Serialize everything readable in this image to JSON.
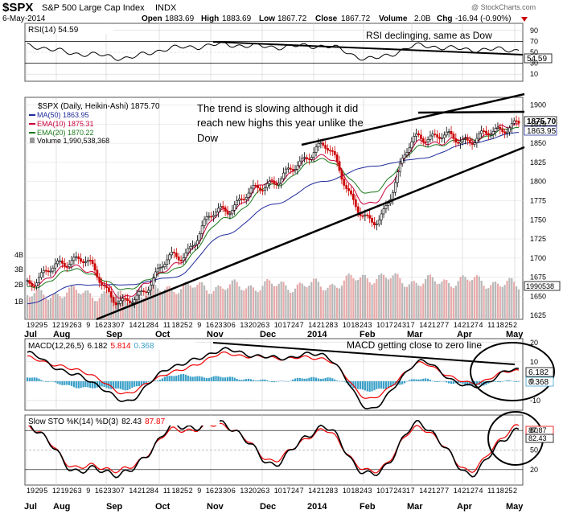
{
  "header": {
    "symbol": "$SPX",
    "name": "S&P 500 Large Cap Index",
    "exchange": "INDX",
    "date": "6-May-2014",
    "open_label": "Open",
    "open": "1883.69",
    "high_label": "High",
    "high": "1883.69",
    "low_label": "Low",
    "low": "1867.72",
    "close_label": "Close",
    "close": "1867.72",
    "volume_label": "Volume",
    "volume": "2.0B",
    "chg_label": "Chg",
    "chg": "-16.94 (-0.90%)",
    "watermark": "@ StockCharts.com"
  },
  "rsi": {
    "legend": "RSI(14) 54.59",
    "annotation": "RSI declinging, same as Dow",
    "value_tag": "54.59",
    "ticks": [
      "90",
      "70",
      "50",
      "30",
      "10"
    ]
  },
  "price": {
    "legend_title": "$SPX (Daily, Heikin-Ashi) 1875.70",
    "legend_ma50": "MA(50) 1863.95",
    "legend_ema10": "EMA(10) 1875.31",
    "legend_ema20": "EMA(20) 1870.22",
    "legend_volume": "Volume 1,990,538,368",
    "annotation_lines": [
      "The trend is slowing although it did",
      "reach new highs this year unlike the",
      "Dow"
    ],
    "tag_close": "1875.70",
    "tag_ma": "1863.95",
    "tag_volume": "1990538",
    "ticks": [
      "1900",
      "1875",
      "1850",
      "1825",
      "1800",
      "1775",
      "1750",
      "1725",
      "1700",
      "1675",
      "1650",
      "1625"
    ],
    "volume_ticks": [
      "4B",
      "3B",
      "2B",
      "1B"
    ]
  },
  "macd": {
    "legend_prefix": "MACD(12,26,5)",
    "legend_macd": "6.182",
    "legend_signal": "5.814",
    "legend_hist": "0.368",
    "annotation": "MACD getting close to zero line",
    "tag_macd": "6.182",
    "tag_hist": "0.368",
    "ticks": [
      "20",
      "10",
      "0",
      "-10"
    ]
  },
  "sto": {
    "legend_prefix": "Slow STO %K(14) %D(3)",
    "legend_k": "82.43",
    "legend_d": "87.87",
    "tag_k": "82.43",
    "tag_d": "87.87",
    "ticks": [
      "80",
      "50",
      "20"
    ]
  },
  "xaxis": {
    "date_labels": [
      "19",
      "29",
      "5",
      "12",
      "19",
      "26",
      "3",
      "9",
      "16",
      "23",
      "30",
      "7",
      "14",
      "21",
      "28",
      "4",
      "11",
      "18",
      "25",
      "2",
      "9",
      "16",
      "23",
      "30",
      "6",
      "13",
      "20",
      "26",
      "3",
      "10",
      "17",
      "24",
      "7",
      "14",
      "21",
      "28",
      "3",
      "10",
      "18",
      "24",
      "3",
      "10",
      "17",
      "24",
      "31",
      "7",
      "14",
      "21",
      "27",
      "7",
      "14",
      "21",
      "27",
      "4",
      "11",
      "18",
      "25",
      "2"
    ],
    "month_labels": [
      "Jul",
      "Aug",
      "Sep",
      "Oct",
      "Nov",
      "Dec",
      "2014",
      "Feb",
      "Mar",
      "Apr",
      "May"
    ]
  },
  "colors": {
    "up_candle": "#000000",
    "down_candle": "#cc0000",
    "ma50": "#1f2a9a",
    "ema10": "#c8003c",
    "ema20": "#1a7a1a",
    "volume_up": "#b8b8b8",
    "volume_down": "#e8aaaa",
    "macd_line": "#000000",
    "signal_line": "#ee0000",
    "histogram": "#3aa0c8",
    "trendline": "#000000"
  },
  "chart_data": [
    {
      "type": "line",
      "panel": "RSI",
      "title": "RSI(14) 54.59",
      "ylim": [
        0,
        100
      ],
      "reference_lines": [
        70,
        30
      ],
      "x": [
        "Jul",
        "Aug",
        "Sep",
        "Oct",
        "Nov",
        "Dec",
        "2014",
        "Feb",
        "Mar",
        "Apr",
        "May"
      ],
      "series": [
        {
          "name": "RSI(14)",
          "values": [
            62,
            48,
            40,
            58,
            64,
            60,
            62,
            38,
            62,
            55,
            54.59
          ]
        }
      ]
    },
    {
      "type": "line",
      "panel": "Price",
      "title": "$SPX (Daily, Heikin-Ashi) 1875.70",
      "ylim": [
        1620,
        1910
      ],
      "x": [
        "Jul",
        "Aug",
        "Sep",
        "Oct",
        "Nov",
        "Dec",
        "2014",
        "Feb",
        "Mar",
        "Apr",
        "May"
      ],
      "series": [
        {
          "name": "$SPX",
          "values": [
            1670,
            1700,
            1640,
            1700,
            1765,
            1800,
            1845,
            1745,
            1860,
            1855,
            1875.7
          ]
        },
        {
          "name": "MA(50)",
          "values": [
            1640,
            1665,
            1665,
            1675,
            1730,
            1770,
            1800,
            1820,
            1830,
            1850,
            1863.95
          ]
        },
        {
          "name": "EMA(10)",
          "values": [
            1665,
            1690,
            1650,
            1690,
            1760,
            1800,
            1835,
            1770,
            1850,
            1855,
            1875.31
          ]
        },
        {
          "name": "EMA(20)",
          "values": [
            1660,
            1685,
            1660,
            1685,
            1750,
            1795,
            1830,
            1785,
            1845,
            1855,
            1870.22
          ]
        }
      ]
    },
    {
      "type": "bar",
      "panel": "Volume",
      "title": "Volume 1,990,538,368",
      "categories": [
        "Jul",
        "Aug",
        "Sep",
        "Oct",
        "Nov",
        "Dec",
        "2014",
        "Feb",
        "Mar",
        "Apr",
        "May"
      ],
      "values": [
        1.4,
        1.6,
        1.3,
        1.9,
        1.9,
        2.0,
        2.0,
        2.5,
        2.2,
        2.3,
        1.99
      ],
      "ylabel": "Volume"
    },
    {
      "type": "line",
      "panel": "MACD",
      "title": "MACD(12,26,5) 6.182, 5.814, 0.368",
      "ylim": [
        -15,
        22
      ],
      "x": [
        "Jul",
        "Aug",
        "Sep",
        "Oct",
        "Nov",
        "Dec",
        "2014",
        "Feb",
        "Mar",
        "Apr",
        "May"
      ],
      "series": [
        {
          "name": "MACD",
          "values": [
            14,
            3,
            -10,
            8,
            16,
            12,
            14,
            -14,
            10,
            -3,
            6.182
          ]
        },
        {
          "name": "Signal",
          "values": [
            12,
            6,
            -6,
            5,
            14,
            12,
            12,
            -9,
            9,
            -1,
            5.814
          ]
        },
        {
          "name": "Histogram",
          "values": [
            2,
            -3,
            -4,
            3,
            2,
            0,
            2,
            -5,
            1,
            -2,
            0.368
          ]
        }
      ]
    },
    {
      "type": "line",
      "panel": "Slow STO",
      "title": "Slow STO %K(14) %D(3) 82.43 87.87",
      "ylim": [
        0,
        100
      ],
      "reference_lines": [
        80,
        20
      ],
      "x": [
        "Jul",
        "Aug",
        "Sep",
        "Oct",
        "Nov",
        "Dec",
        "2014",
        "Feb",
        "Mar",
        "Apr",
        "May"
      ],
      "series": [
        {
          "name": "%K(14)",
          "values": [
            90,
            20,
            15,
            85,
            90,
            30,
            85,
            10,
            90,
            15,
            82.43
          ]
        },
        {
          "name": "%D(3)",
          "values": [
            88,
            25,
            20,
            80,
            88,
            35,
            80,
            15,
            85,
            20,
            87.87
          ]
        }
      ]
    }
  ]
}
